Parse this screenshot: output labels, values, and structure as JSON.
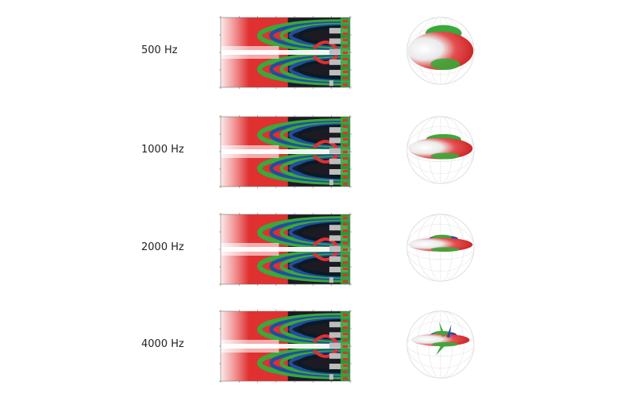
{
  "rows": [
    {
      "freq": "500 Hz"
    },
    {
      "freq": "1000 Hz"
    },
    {
      "freq": "2000 Hz"
    },
    {
      "freq": "4000 Hz"
    }
  ],
  "colors": {
    "red": "#e03030",
    "green": "#3aa83a",
    "blue": "#1f4fa0",
    "dark": "#0b1a24",
    "grey": "#bdbdbd",
    "white": "#ffffff"
  }
}
